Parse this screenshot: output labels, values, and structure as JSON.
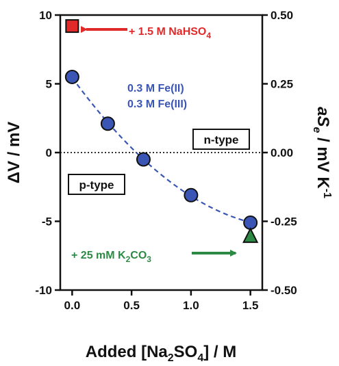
{
  "chart_data": {
    "type": "scatter",
    "xlabel": {
      "main": "Added [Na",
      "sub": "2",
      "mid": "SO",
      "sub2": "4",
      "end": "]  / M"
    },
    "ylabel_left": {
      "main": "ΔV / mV"
    },
    "ylabel_right": {
      "pre": "aS",
      "sub": "e",
      "post": " / mV K",
      "sup": "-1"
    },
    "xlim": [
      -0.1,
      1.6
    ],
    "ylim": [
      -10,
      10
    ],
    "x_ticks": [
      {
        "value": 0.0,
        "label": "0.0"
      },
      {
        "value": 0.5,
        "label": "0.5"
      },
      {
        "value": 1.0,
        "label": "1.0"
      },
      {
        "value": 1.5,
        "label": "1.5"
      }
    ],
    "y_ticks_left": [
      {
        "value": 10,
        "label": "10"
      },
      {
        "value": 5,
        "label": "5"
      },
      {
        "value": 0,
        "label": "0"
      },
      {
        "value": -5,
        "label": "-5"
      },
      {
        "value": -10,
        "label": "-10"
      }
    ],
    "y_ticks_right": [
      {
        "value": 10,
        "label": "0.50"
      },
      {
        "value": 5,
        "label": "0.25"
      },
      {
        "value": 0,
        "label": "0.00"
      },
      {
        "value": -5,
        "label": "-0.25"
      },
      {
        "value": -10,
        "label": "-0.50"
      }
    ],
    "series": [
      {
        "marker": "circle",
        "color": "#3a55b4",
        "points": [
          {
            "x": 0.0,
            "y": 5.5
          },
          {
            "x": 0.3,
            "y": 2.1
          },
          {
            "x": 0.6,
            "y": -0.5
          },
          {
            "x": 1.0,
            "y": -3.1
          },
          {
            "x": 1.5,
            "y": -5.1
          }
        ]
      },
      {
        "marker": "square",
        "color": "#e02a2a",
        "points": [
          {
            "x": 0.0,
            "y": 9.2
          }
        ]
      },
      {
        "marker": "triangle",
        "color": "#2c8a44",
        "points": [
          {
            "x": 1.5,
            "y": -6.1
          }
        ]
      }
    ],
    "fit_line": {
      "style": "dashed",
      "color": "#3a55b4",
      "x_range": [
        0.0,
        1.5
      ]
    },
    "zero_line": {
      "style": "dotted",
      "color": "#111111"
    },
    "annotations": {
      "nahso4": {
        "text": "+ 1.5 M NaHSO",
        "sub": "4",
        "color": "#e02a2a"
      },
      "k2co3": {
        "text_a": "+ 25 mM K",
        "sub_a": "2",
        "text_b": "CO",
        "sub_b": "3",
        "color": "#2c8a44"
      },
      "fe2": {
        "text": "0.3 M Fe(II)",
        "color": "#3a55b4"
      },
      "fe3": {
        "text": "0.3 M Fe(III)",
        "color": "#3a55b4"
      },
      "ntype": {
        "text": "n-type"
      },
      "ptype": {
        "text": "p-type"
      }
    }
  }
}
